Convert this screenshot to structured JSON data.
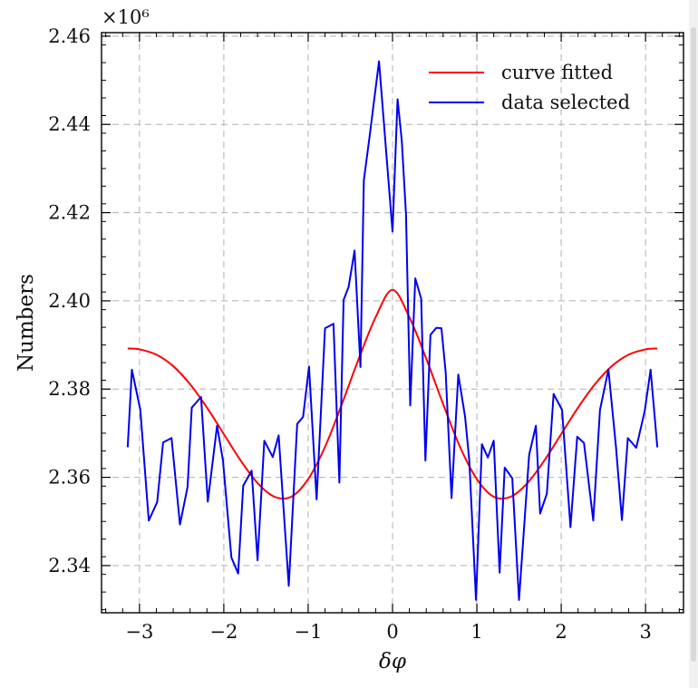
{
  "chart_data": {
    "type": "line",
    "xlabel": "δφ",
    "ylabel": "Numbers",
    "y_multiplier_label": "×10⁶",
    "xlim": [
      -3.45,
      3.45
    ],
    "ylim": [
      2.3293,
      2.4608
    ],
    "x_ticks": [
      -3,
      -2,
      -1,
      0,
      1,
      2,
      3
    ],
    "x_tick_labels": [
      "−3",
      "−2",
      "−1",
      "0",
      "1",
      "2",
      "3"
    ],
    "y_ticks": [
      2.34,
      2.36,
      2.38,
      2.4,
      2.42,
      2.44,
      2.46
    ],
    "y_tick_labels": [
      "2.34",
      "2.36",
      "2.38",
      "2.40",
      "2.42",
      "2.44",
      "2.46"
    ],
    "grid": true,
    "legend_position": "top-right",
    "series": [
      {
        "name": "curve fitted",
        "color": "#ff0000",
        "style": "smooth",
        "x": [
          -3.14,
          -3.0,
          -2.8,
          -2.6,
          -2.4,
          -2.2,
          -2.0,
          -1.8,
          -1.6,
          -1.4,
          -1.2,
          -1.0,
          -0.8,
          -0.6,
          -0.4,
          -0.2,
          0.0,
          0.2,
          0.4,
          0.6,
          0.8,
          1.0,
          1.2,
          1.4,
          1.6,
          1.8,
          2.0,
          2.2,
          2.4,
          2.6,
          2.8,
          3.0,
          3.14
        ],
        "values": [
          2.3892,
          2.389,
          2.3878,
          2.3852,
          2.3811,
          2.3758,
          2.3698,
          2.3638,
          2.3587,
          2.3556,
          2.3556,
          2.3596,
          2.3669,
          2.3766,
          2.3869,
          2.3963,
          2.4025,
          2.3963,
          2.3869,
          2.3766,
          2.3669,
          2.3596,
          2.3556,
          2.3556,
          2.3587,
          2.3638,
          2.3698,
          2.3758,
          2.3811,
          2.3852,
          2.3878,
          2.389,
          2.3892
        ]
      },
      {
        "name": "data selected",
        "color": "#0000ee",
        "style": "polyline",
        "x": [
          -3.14,
          -3.09,
          -2.99,
          -2.89,
          -2.79,
          -2.72,
          -2.62,
          -2.52,
          -2.43,
          -2.38,
          -2.27,
          -2.19,
          -2.08,
          -2.01,
          -1.91,
          -1.83,
          -1.77,
          -1.67,
          -1.6,
          -1.52,
          -1.42,
          -1.35,
          -1.23,
          -1.13,
          -1.06,
          -0.99,
          -0.9,
          -0.8,
          -0.7,
          -0.63,
          -0.58,
          -0.52,
          -0.45,
          -0.38,
          -0.34,
          -0.27,
          -0.16,
          0.0,
          0.06,
          0.11,
          0.16,
          0.21,
          0.27,
          0.34,
          0.39,
          0.45,
          0.52,
          0.58,
          0.63,
          0.7,
          0.78,
          0.86,
          0.91,
          0.99,
          1.06,
          1.13,
          1.2,
          1.27,
          1.33,
          1.42,
          1.5,
          1.62,
          1.7,
          1.75,
          1.83,
          1.91,
          2.01,
          2.11,
          2.19,
          2.27,
          2.38,
          2.46,
          2.56,
          2.65,
          2.72,
          2.79,
          2.89,
          2.99,
          3.06,
          3.14
        ],
        "values": [
          2.3668,
          2.3844,
          2.3753,
          2.3502,
          2.3544,
          2.3679,
          2.3689,
          2.3493,
          2.3578,
          2.3758,
          2.3782,
          2.3545,
          2.3717,
          2.3638,
          2.3418,
          2.3382,
          2.3581,
          2.3615,
          2.3412,
          2.3683,
          2.3646,
          2.3695,
          2.3354,
          2.3721,
          2.3737,
          2.3851,
          2.355,
          2.3938,
          2.3948,
          2.3588,
          2.4002,
          2.4032,
          2.4114,
          2.385,
          2.4273,
          2.4375,
          2.4543,
          2.4157,
          2.4457,
          2.4363,
          2.4196,
          2.3763,
          2.4051,
          2.4005,
          2.3638,
          2.3923,
          2.3939,
          2.3938,
          2.3839,
          2.3553,
          2.3833,
          2.3738,
          2.3639,
          2.3322,
          2.3675,
          2.3645,
          2.3683,
          2.3384,
          2.3622,
          2.3598,
          2.3322,
          2.3651,
          2.3717,
          2.3518,
          2.3563,
          2.3789,
          2.3753,
          2.3487,
          2.3692,
          2.3678,
          2.3502,
          2.3753,
          2.3844,
          2.3668,
          2.3503,
          2.3689,
          2.3667,
          2.375,
          2.3844,
          2.3668
        ]
      }
    ]
  }
}
